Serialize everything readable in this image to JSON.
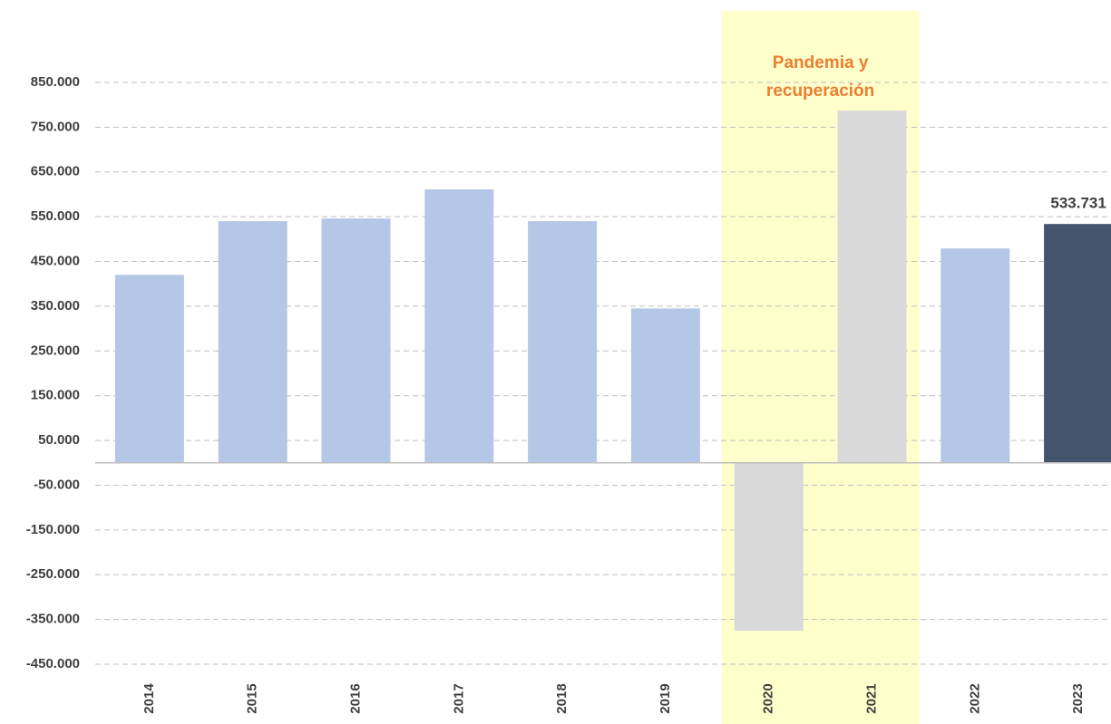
{
  "chart_data": {
    "type": "bar",
    "categories": [
      "2014",
      "2015",
      "2016",
      "2017",
      "2018",
      "2019",
      "2020",
      "2021",
      "2022",
      "2023"
    ],
    "values": [
      420000,
      540000,
      546000,
      611000,
      540000,
      345000,
      -375000,
      787000,
      479000,
      533731
    ],
    "value_labels": [
      null,
      null,
      null,
      null,
      null,
      null,
      null,
      null,
      null,
      "533.731"
    ],
    "colors": [
      "#b4c7e7",
      "#b4c7e7",
      "#b4c7e7",
      "#b4c7e7",
      "#b4c7e7",
      "#b4c7e7",
      "#d9d9d9",
      "#d9d9d9",
      "#b4c7e7",
      "#44546a"
    ],
    "ylim": [
      -450000,
      850000
    ],
    "yticks": [
      {
        "value": 850000,
        "label": "850.000"
      },
      {
        "value": 750000,
        "label": "750.000"
      },
      {
        "value": 650000,
        "label": "650.000"
      },
      {
        "value": 550000,
        "label": "550.000"
      },
      {
        "value": 450000,
        "label": "450.000"
      },
      {
        "value": 350000,
        "label": "350.000"
      },
      {
        "value": 250000,
        "label": "250.000"
      },
      {
        "value": 150000,
        "label": "150.000"
      },
      {
        "value": 50000,
        "label": "50.000"
      },
      {
        "value": -50000,
        "label": "-50.000"
      },
      {
        "value": -150000,
        "label": "-150.000"
      },
      {
        "value": -250000,
        "label": "-250.000"
      },
      {
        "value": -350000,
        "label": "-350.000"
      },
      {
        "value": -450000,
        "label": "-450.000"
      }
    ],
    "grid": true,
    "highlight": {
      "from": 6,
      "to": 7,
      "color": "#ffffcc",
      "label_color": "#ed7d31",
      "label_lines": [
        "Pandemia y",
        "recuperación"
      ]
    }
  }
}
